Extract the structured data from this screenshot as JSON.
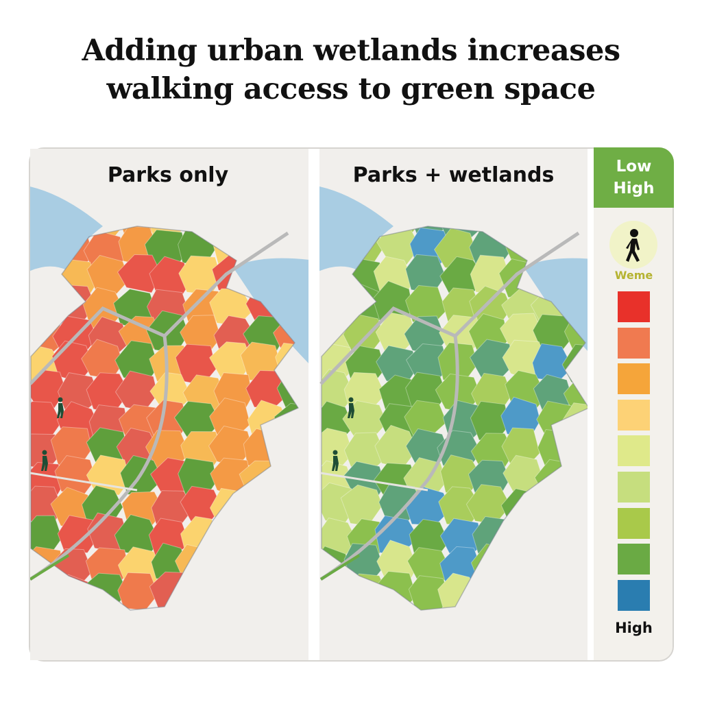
{
  "title_line1": "Adding urban wetlands increases",
  "title_line2": "walking access to green space",
  "panels": [
    {
      "title": "Parks only",
      "palette": [
        "#e8564a",
        "#ef7a4c",
        "#f49a45",
        "#f7b955",
        "#fbd36e",
        "#e25f52",
        "#5f9f3c"
      ]
    },
    {
      "title": "Parks + wetlands",
      "palette": [
        "#8cc04e",
        "#a9cd5c",
        "#d8e68c",
        "#6aaa44",
        "#4e9ac8",
        "#c6de7e",
        "#5fa37a"
      ]
    }
  ],
  "legend": {
    "header_low": "Low",
    "header_high": "High",
    "icon": "pedestrian-icon",
    "icon_label": "Weme",
    "colors": [
      "#e8312a",
      "#f07a50",
      "#f5a53a",
      "#fdd276",
      "#dfe98a",
      "#c6de7e",
      "#a9c94a",
      "#6aaa44",
      "#2a7db0"
    ],
    "footer": "High"
  },
  "colors": {
    "water": "#a9cde3",
    "road": "#b9b9b9",
    "land": "#f1efec"
  }
}
